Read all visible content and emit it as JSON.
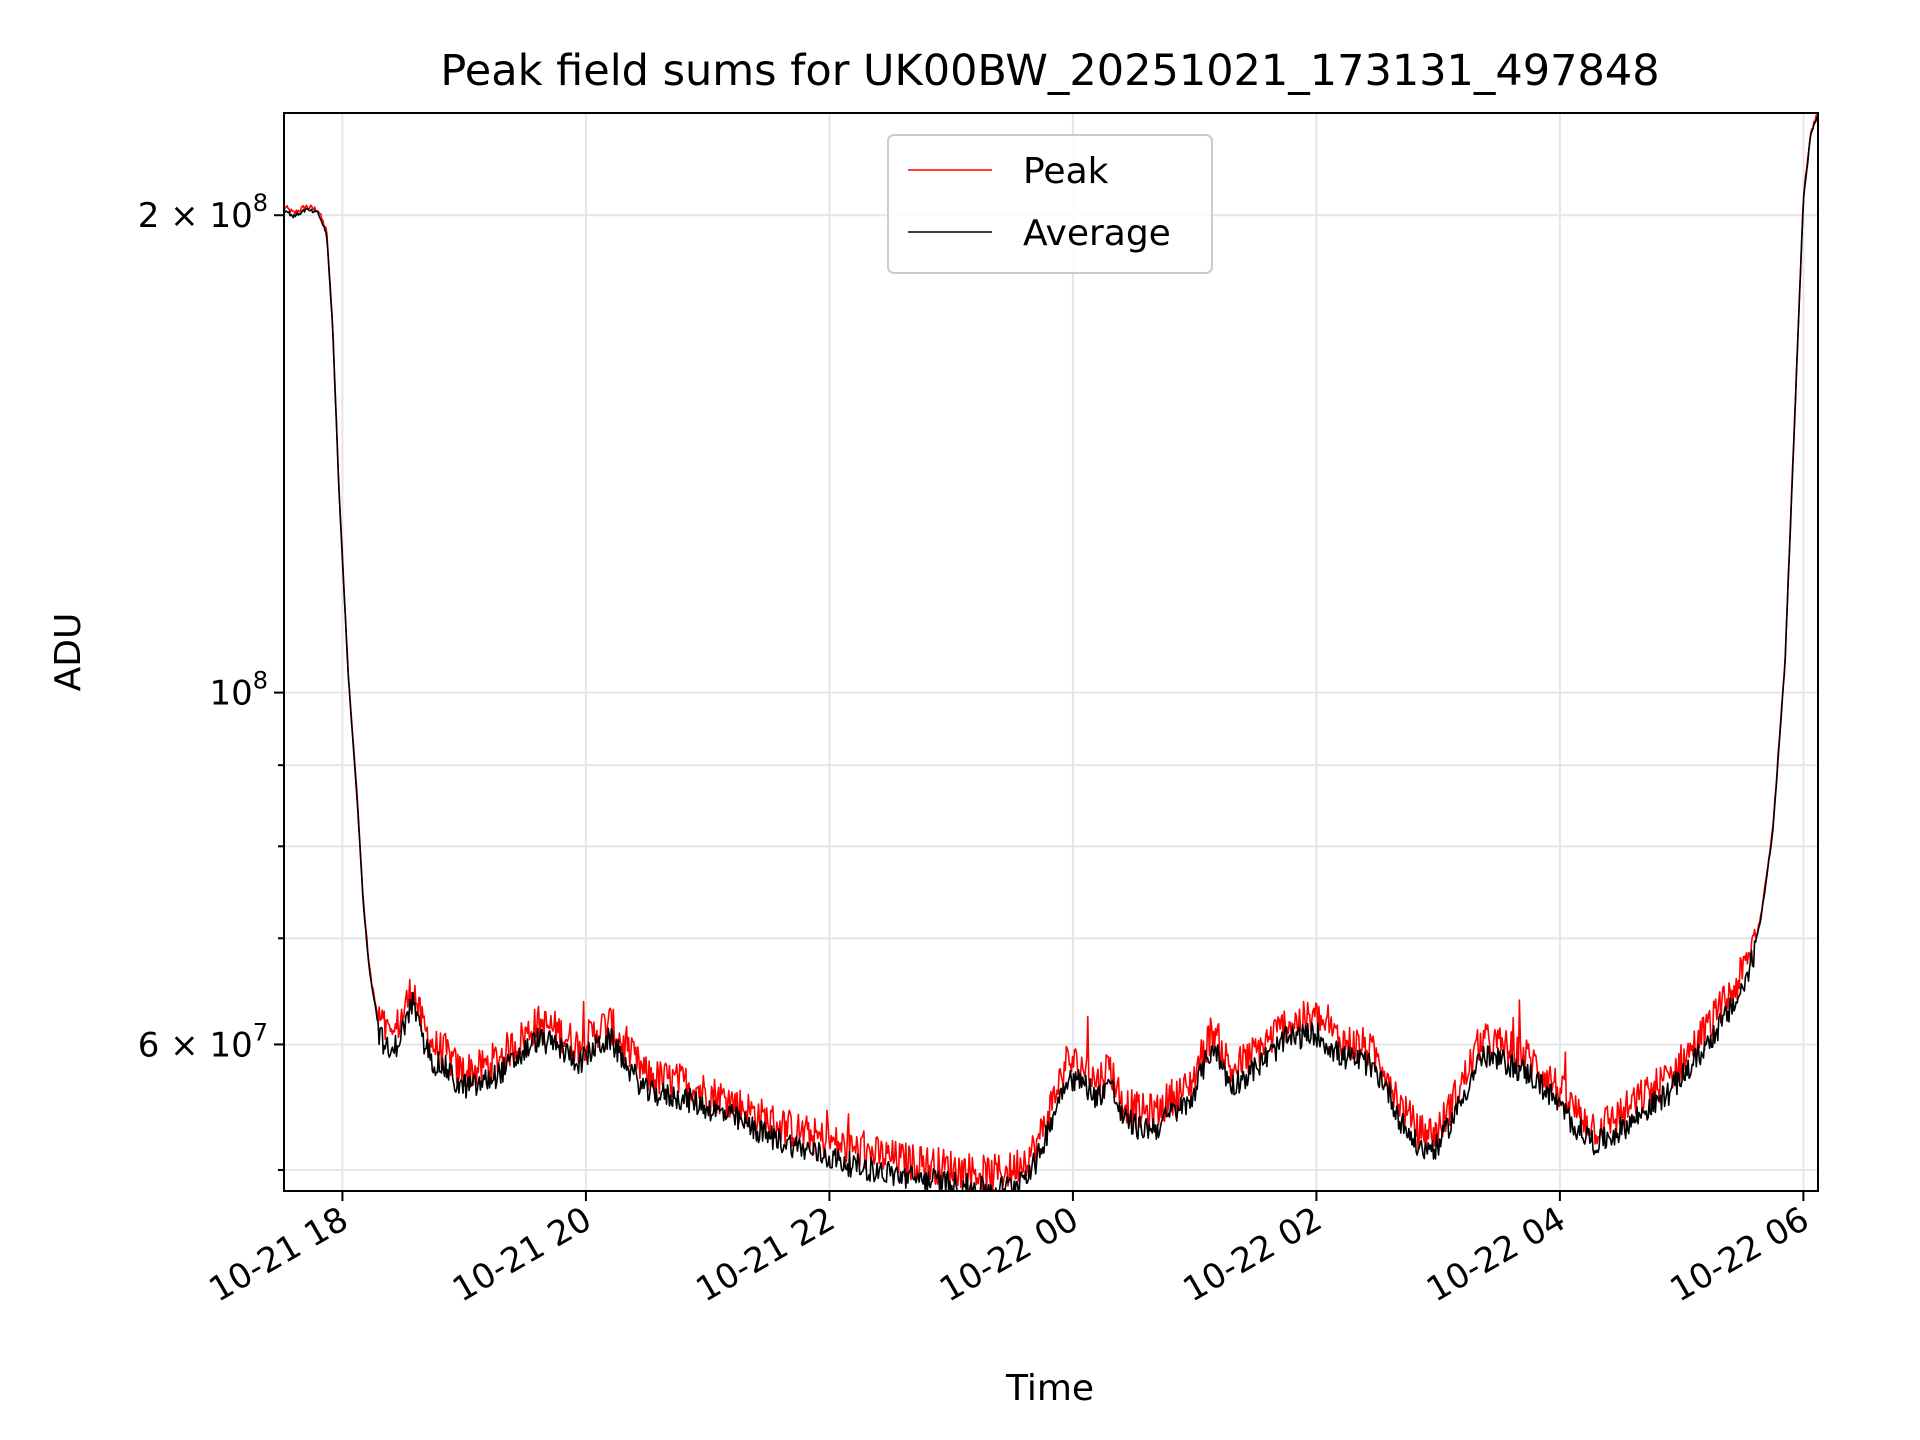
{
  "chart_data": {
    "type": "line",
    "title": "Peak field sums for UK00BW_20251021_173131_497848",
    "xlabel": "Time",
    "ylabel": "ADU",
    "yscale": "log",
    "ylim": [
      48500000,
      232000000
    ],
    "xlim_hours_since_2025_10_21_00": [
      17.52,
      30.12
    ],
    "grid": true,
    "legend_position": "top-center",
    "x_ticks": [
      {
        "hour": 18,
        "label": "10-21 18"
      },
      {
        "hour": 20,
        "label": "10-21 20"
      },
      {
        "hour": 22,
        "label": "10-21 22"
      },
      {
        "hour": 24,
        "label": "10-22 00"
      },
      {
        "hour": 26,
        "label": "10-22 02"
      },
      {
        "hour": 28,
        "label": "10-22 04"
      },
      {
        "hour": 30,
        "label": "10-22 06"
      }
    ],
    "y_major_ticks": [
      {
        "value": 200000000,
        "base": "2 × 10",
        "exp": "8"
      },
      {
        "value": 100000000,
        "base": "10",
        "exp": "8"
      },
      {
        "value": 60000000,
        "base": "6 × 10",
        "exp": "7"
      }
    ],
    "y_minor_ticks": [
      50000000,
      70000000,
      80000000,
      90000000
    ],
    "series": [
      {
        "name": "Peak",
        "color": "#ff0000",
        "noise_amp": 0.012,
        "noise_bias": 0.006
      },
      {
        "name": "Average",
        "color": "#000000",
        "noise_amp": 0.008,
        "noise_bias": -0.004
      }
    ],
    "x_hours": [
      17.52,
      17.6,
      17.7,
      17.8,
      17.87,
      17.92,
      17.97,
      18.05,
      18.12,
      18.17,
      18.22,
      18.3,
      18.4,
      18.5,
      18.58,
      18.65,
      18.7,
      18.75,
      18.85,
      18.95,
      19.1,
      19.25,
      19.4,
      19.6,
      19.75,
      19.95,
      20.1,
      20.2,
      20.35,
      20.5,
      20.8,
      21.2,
      21.5,
      21.8,
      22.2,
      22.6,
      23.0,
      23.3,
      23.5,
      23.7,
      23.85,
      23.95,
      24.1,
      24.2,
      24.3,
      24.4,
      24.55,
      24.7,
      24.8,
      24.95,
      25.05,
      25.15,
      25.3,
      25.5,
      25.75,
      26.0,
      26.2,
      26.4,
      26.55,
      26.7,
      26.85,
      27.0,
      27.2,
      27.35,
      27.55,
      27.75,
      27.95,
      28.1,
      28.3,
      28.5,
      28.7,
      28.9,
      29.1,
      29.3,
      29.45,
      29.55,
      29.65,
      29.75,
      29.85,
      29.93,
      30.0,
      30.06,
      30.12
    ],
    "y_values": [
      202000000,
      200000000,
      202000000,
      201000000,
      195000000,
      170000000,
      135000000,
      102000000,
      86000000,
      74000000,
      67000000,
      61500000,
      59500000,
      62000000,
      64500000,
      61000000,
      60000000,
      59000000,
      58500000,
      57000000,
      57000000,
      57800000,
      59000000,
      61000000,
      60500000,
      59000000,
      60500000,
      61000000,
      58500000,
      56500000,
      56000000,
      54500000,
      53000000,
      52000000,
      50800000,
      50000000,
      49500000,
      49000000,
      49300000,
      51000000,
      55000000,
      57800000,
      57200000,
      56000000,
      57500000,
      54500000,
      53600000,
      53700000,
      54800000,
      55500000,
      58000000,
      60500000,
      57000000,
      58500000,
      61000000,
      61500000,
      59500000,
      59000000,
      57500000,
      54000000,
      52000000,
      52200000,
      56000000,
      59500000,
      59000000,
      58000000,
      56000000,
      54000000,
      52400000,
      53500000,
      55000000,
      56500000,
      59000000,
      62000000,
      64500000,
      67000000,
      72000000,
      82000000,
      105000000,
      150000000,
      205000000,
      225000000,
      232000000
    ]
  }
}
